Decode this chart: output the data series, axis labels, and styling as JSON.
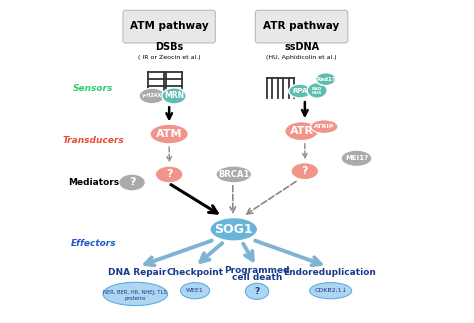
{
  "bg_color": "#ffffff",
  "title_atm": "ATM pathway",
  "title_atr": "ATR pathway",
  "dsb_label": "DSBs",
  "dsb_sub": "( IR or Zeocin et al.)",
  "ssdna_label": "ssDNA",
  "ssdna_sub": "(HU, Aphidicolin et al.)",
  "sensors_label": "Sensors",
  "transducers_label": "Transducers",
  "mediators_label": "Mediators",
  "effectors_label": "Effectors",
  "label_color_sensors": "#2ecc71",
  "label_color_transducers": "#e74c3c",
  "label_color_mediators": "#000000",
  "label_color_effectors": "#2255cc",
  "pink_color": "#f1948a",
  "green_color": "#5dbdb0",
  "gray_color": "#aaaaaa",
  "blue_color": "#5dade2",
  "arrow_blue": "#7fb3d3",
  "sog1_color": "#6ab4d8",
  "dna_color": "#333333",
  "title_box_bg": "#e8e8e8",
  "title_box_edge": "#bbbbbb",
  "dark_blue_text": "#1a3a8a",
  "output_ellipse_fill": "#aed6f1",
  "output_ellipse_edge": "#5dade2"
}
